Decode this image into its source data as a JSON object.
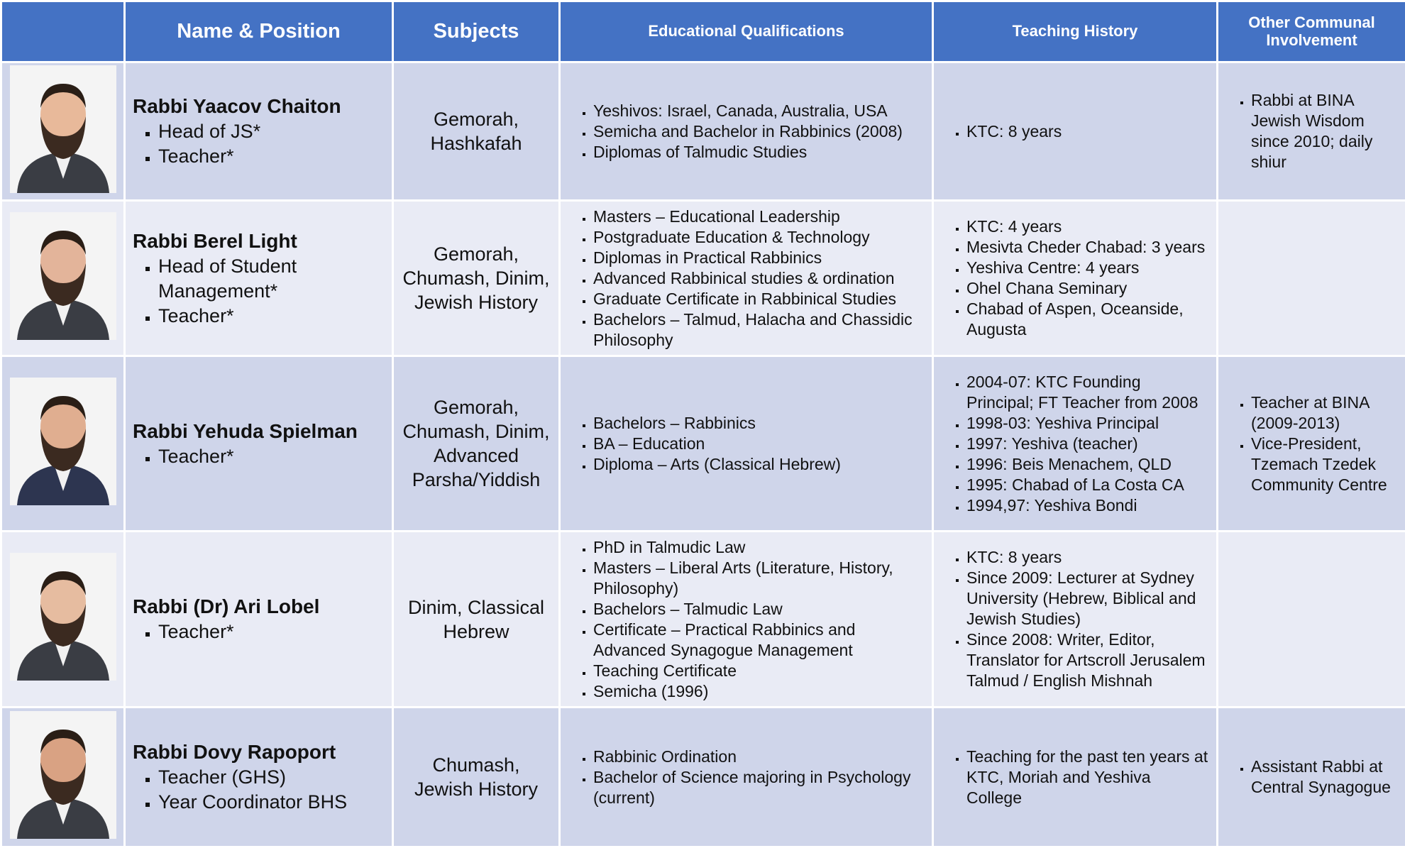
{
  "table": {
    "headers": [
      "Name & Position",
      "Subjects",
      "Educational Qualifications",
      "Teaching History",
      "Other Communal Involvement"
    ],
    "rows": [
      {
        "name": "Rabbi Yaacov Chaiton",
        "positions": [
          "Head of JS*",
          "Teacher*"
        ],
        "subjects": "Gemorah, Hashkafah",
        "qualifications": [
          "Yeshivos: Israel, Canada, Australia, USA",
          "Semicha and Bachelor in Rabbinics (2008)",
          "Diplomas of Talmudic Studies"
        ],
        "teaching": [
          "KTC: 8 years"
        ],
        "communal": [
          "Rabbi at BINA Jewish Wisdom since 2010; daily shiur"
        ]
      },
      {
        "name": "Rabbi Berel Light",
        "positions": [
          "Head of Student Management*",
          "Teacher*"
        ],
        "subjects": "Gemorah, Chumash, Dinim, Jewish History",
        "qualifications": [
          "Masters – Educational Leadership",
          "Postgraduate Education & Technology",
          "Diplomas in Practical Rabbinics",
          "Advanced Rabbinical studies & ordination",
          "Graduate Certificate in Rabbinical Studies",
          "Bachelors – Talmud, Halacha and Chassidic Philosophy"
        ],
        "teaching": [
          "KTC: 4 years",
          "Mesivta Cheder Chabad: 3 years",
          "Yeshiva Centre: 4 years",
          "Ohel Chana Seminary",
          "Chabad of Aspen, Oceanside, Augusta"
        ],
        "communal": []
      },
      {
        "name": "Rabbi Yehuda Spielman",
        "positions": [
          "Teacher*"
        ],
        "subjects": "Gemorah, Chumash, Dinim, Advanced Parsha/Yiddish",
        "qualifications": [
          "Bachelors – Rabbinics",
          "BA – Education",
          "Diploma – Arts (Classical Hebrew)"
        ],
        "teaching": [
          "2004-07: KTC Founding Principal; FT Teacher from 2008",
          "1998-03: Yeshiva Principal",
          "1997: Yeshiva (teacher)",
          "1996: Beis Menachem, QLD",
          "1995: Chabad of La Costa CA",
          "1994,97: Yeshiva Bondi"
        ],
        "communal": [
          "Teacher at BINA (2009-2013)",
          "Vice-President, Tzemach Tzedek Community Centre"
        ]
      },
      {
        "name": "Rabbi (Dr) Ari Lobel",
        "positions": [
          "Teacher*"
        ],
        "subjects": "Dinim, Classical Hebrew",
        "qualifications": [
          "PhD in Talmudic Law",
          "Masters – Liberal Arts (Literature, History, Philosophy)",
          "Bachelors – Talmudic Law",
          "Certificate – Practical Rabbinics and Advanced Synagogue Management",
          "Teaching Certificate",
          "Semicha (1996)"
        ],
        "teaching": [
          "KTC: 8 years",
          "Since 2009: Lecturer at Sydney University (Hebrew, Biblical and Jewish Studies)",
          "Since 2008: Writer, Editor, Translator for Artscroll Jerusalem Talmud / English Mishnah"
        ],
        "communal": []
      },
      {
        "name": "Rabbi Dovy Rapoport",
        "positions": [
          "Teacher (GHS)",
          "Year Coordinator BHS"
        ],
        "subjects": "Chumash, Jewish History",
        "qualifications": [
          "Rabbinic Ordination",
          "Bachelor of Science majoring in Psychology (current)"
        ],
        "teaching": [
          "Teaching for the past ten years at KTC, Moriah and Yeshiva College"
        ],
        "communal": [
          "Assistant Rabbi at Central Synagogue"
        ]
      }
    ]
  }
}
